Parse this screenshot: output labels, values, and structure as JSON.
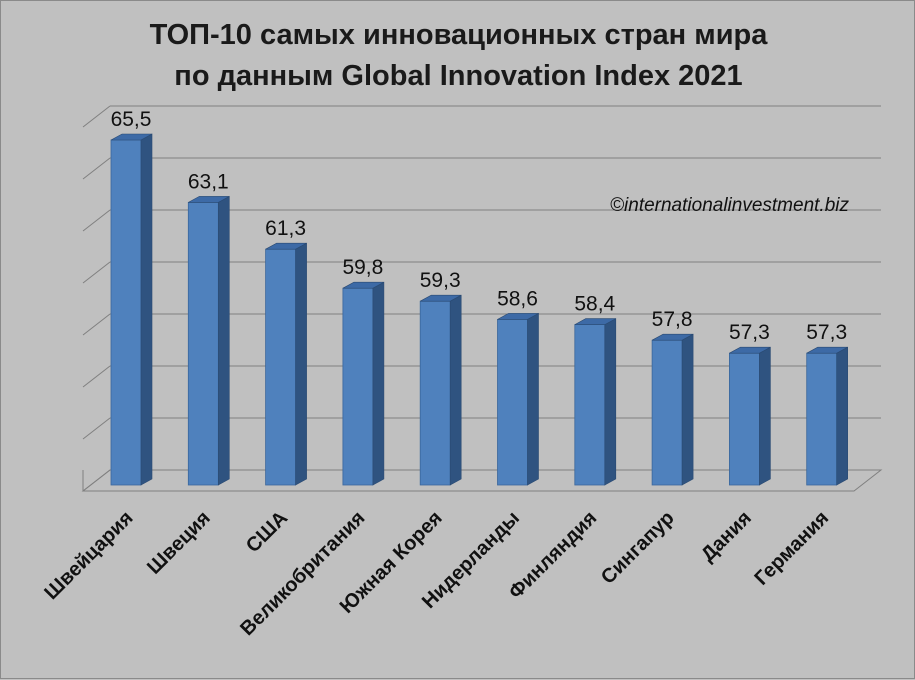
{
  "chart_data": {
    "type": "bar",
    "title_lines": [
      "ТОП-10 самых инновационных стран мира",
      "по данным Global Innovation Index 2021"
    ],
    "categories": [
      "Швейцария",
      "Швеция",
      "США",
      "Великобритания",
      "Южная Корея",
      "Нидерланды",
      "Финляндия",
      "Сингапур",
      "Дания",
      "Германия"
    ],
    "values": [
      65.5,
      63.1,
      61.3,
      59.8,
      59.3,
      58.6,
      58.4,
      57.8,
      57.3,
      57.3
    ],
    "value_labels": [
      "65,5",
      "63,1",
      "61,3",
      "59,8",
      "59,3",
      "58,6",
      "58,4",
      "57,8",
      "57,3",
      "57,3"
    ],
    "ylim": [
      52,
      66
    ],
    "grid": true,
    "legend": false,
    "bar_color": "#4f81bd",
    "annotation": "©internationalinvestment.biz"
  }
}
